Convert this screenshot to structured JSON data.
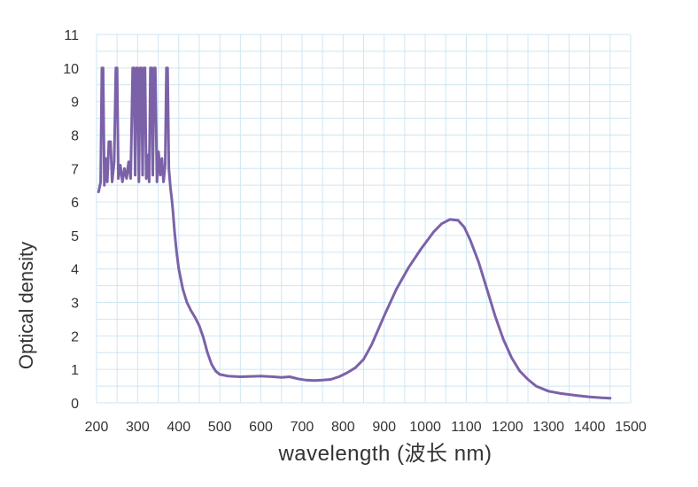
{
  "chart_data": {
    "type": "line",
    "title": "",
    "xlabel": "wavelength (波长 nm)",
    "ylabel": "Optical density",
    "xlim": [
      200,
      1500
    ],
    "ylim": [
      0,
      11
    ],
    "xticks": [
      200,
      300,
      400,
      500,
      600,
      700,
      800,
      900,
      1000,
      1100,
      1200,
      1300,
      1400,
      1500
    ],
    "yticks": [
      0,
      1,
      2,
      3,
      4,
      5,
      6,
      7,
      8,
      9,
      10,
      11
    ],
    "grid": true,
    "colors": {
      "line": "#7b62a8",
      "grid": "#cfe6f2",
      "text": "#333333"
    },
    "series": [
      {
        "values": [
          [
            205,
            6.3
          ],
          [
            210,
            6.6
          ],
          [
            213,
            10.0
          ],
          [
            216,
            10.0
          ],
          [
            219,
            6.5
          ],
          [
            222,
            7.3
          ],
          [
            226,
            6.6
          ],
          [
            230,
            7.8
          ],
          [
            234,
            7.8
          ],
          [
            238,
            6.6
          ],
          [
            243,
            7.2
          ],
          [
            247,
            10.0
          ],
          [
            250,
            10.0
          ],
          [
            253,
            6.7
          ],
          [
            258,
            7.1
          ],
          [
            263,
            6.6
          ],
          [
            268,
            7.0
          ],
          [
            273,
            6.7
          ],
          [
            278,
            7.2
          ],
          [
            283,
            6.7
          ],
          [
            288,
            10.0
          ],
          [
            291,
            10.0
          ],
          [
            294,
            6.8
          ],
          [
            297,
            10.0
          ],
          [
            300,
            10.0
          ],
          [
            303,
            6.6
          ],
          [
            306,
            10.0
          ],
          [
            309,
            10.0
          ],
          [
            312,
            6.8
          ],
          [
            315,
            10.0
          ],
          [
            318,
            10.0
          ],
          [
            321,
            6.7
          ],
          [
            325,
            7.4
          ],
          [
            328,
            6.6
          ],
          [
            331,
            10.0
          ],
          [
            334,
            10.0
          ],
          [
            337,
            6.8
          ],
          [
            340,
            10.0
          ],
          [
            343,
            10.0
          ],
          [
            347,
            6.6
          ],
          [
            351,
            7.5
          ],
          [
            355,
            6.8
          ],
          [
            359,
            7.3
          ],
          [
            363,
            6.6
          ],
          [
            367,
            7.1
          ],
          [
            370,
            10.0
          ],
          [
            373,
            10.0
          ],
          [
            376,
            7.0
          ],
          [
            380,
            6.4
          ],
          [
            383,
            6.1
          ],
          [
            386,
            5.7
          ],
          [
            390,
            5.1
          ],
          [
            395,
            4.5
          ],
          [
            400,
            4.0
          ],
          [
            410,
            3.4
          ],
          [
            420,
            3.0
          ],
          [
            430,
            2.75
          ],
          [
            440,
            2.55
          ],
          [
            450,
            2.3
          ],
          [
            460,
            1.95
          ],
          [
            470,
            1.5
          ],
          [
            480,
            1.15
          ],
          [
            490,
            0.95
          ],
          [
            500,
            0.85
          ],
          [
            520,
            0.8
          ],
          [
            550,
            0.78
          ],
          [
            600,
            0.8
          ],
          [
            630,
            0.78
          ],
          [
            650,
            0.76
          ],
          [
            670,
            0.78
          ],
          [
            690,
            0.72
          ],
          [
            710,
            0.68
          ],
          [
            730,
            0.67
          ],
          [
            750,
            0.68
          ],
          [
            770,
            0.7
          ],
          [
            790,
            0.78
          ],
          [
            810,
            0.9
          ],
          [
            830,
            1.05
          ],
          [
            850,
            1.3
          ],
          [
            870,
            1.75
          ],
          [
            900,
            2.6
          ],
          [
            930,
            3.4
          ],
          [
            960,
            4.05
          ],
          [
            990,
            4.6
          ],
          [
            1020,
            5.1
          ],
          [
            1040,
            5.35
          ],
          [
            1060,
            5.48
          ],
          [
            1080,
            5.45
          ],
          [
            1095,
            5.25
          ],
          [
            1110,
            4.85
          ],
          [
            1130,
            4.2
          ],
          [
            1150,
            3.4
          ],
          [
            1170,
            2.6
          ],
          [
            1190,
            1.9
          ],
          [
            1210,
            1.35
          ],
          [
            1230,
            0.95
          ],
          [
            1250,
            0.7
          ],
          [
            1270,
            0.5
          ],
          [
            1300,
            0.35
          ],
          [
            1330,
            0.28
          ],
          [
            1370,
            0.22
          ],
          [
            1400,
            0.18
          ],
          [
            1430,
            0.15
          ],
          [
            1450,
            0.14
          ]
        ]
      }
    ]
  }
}
